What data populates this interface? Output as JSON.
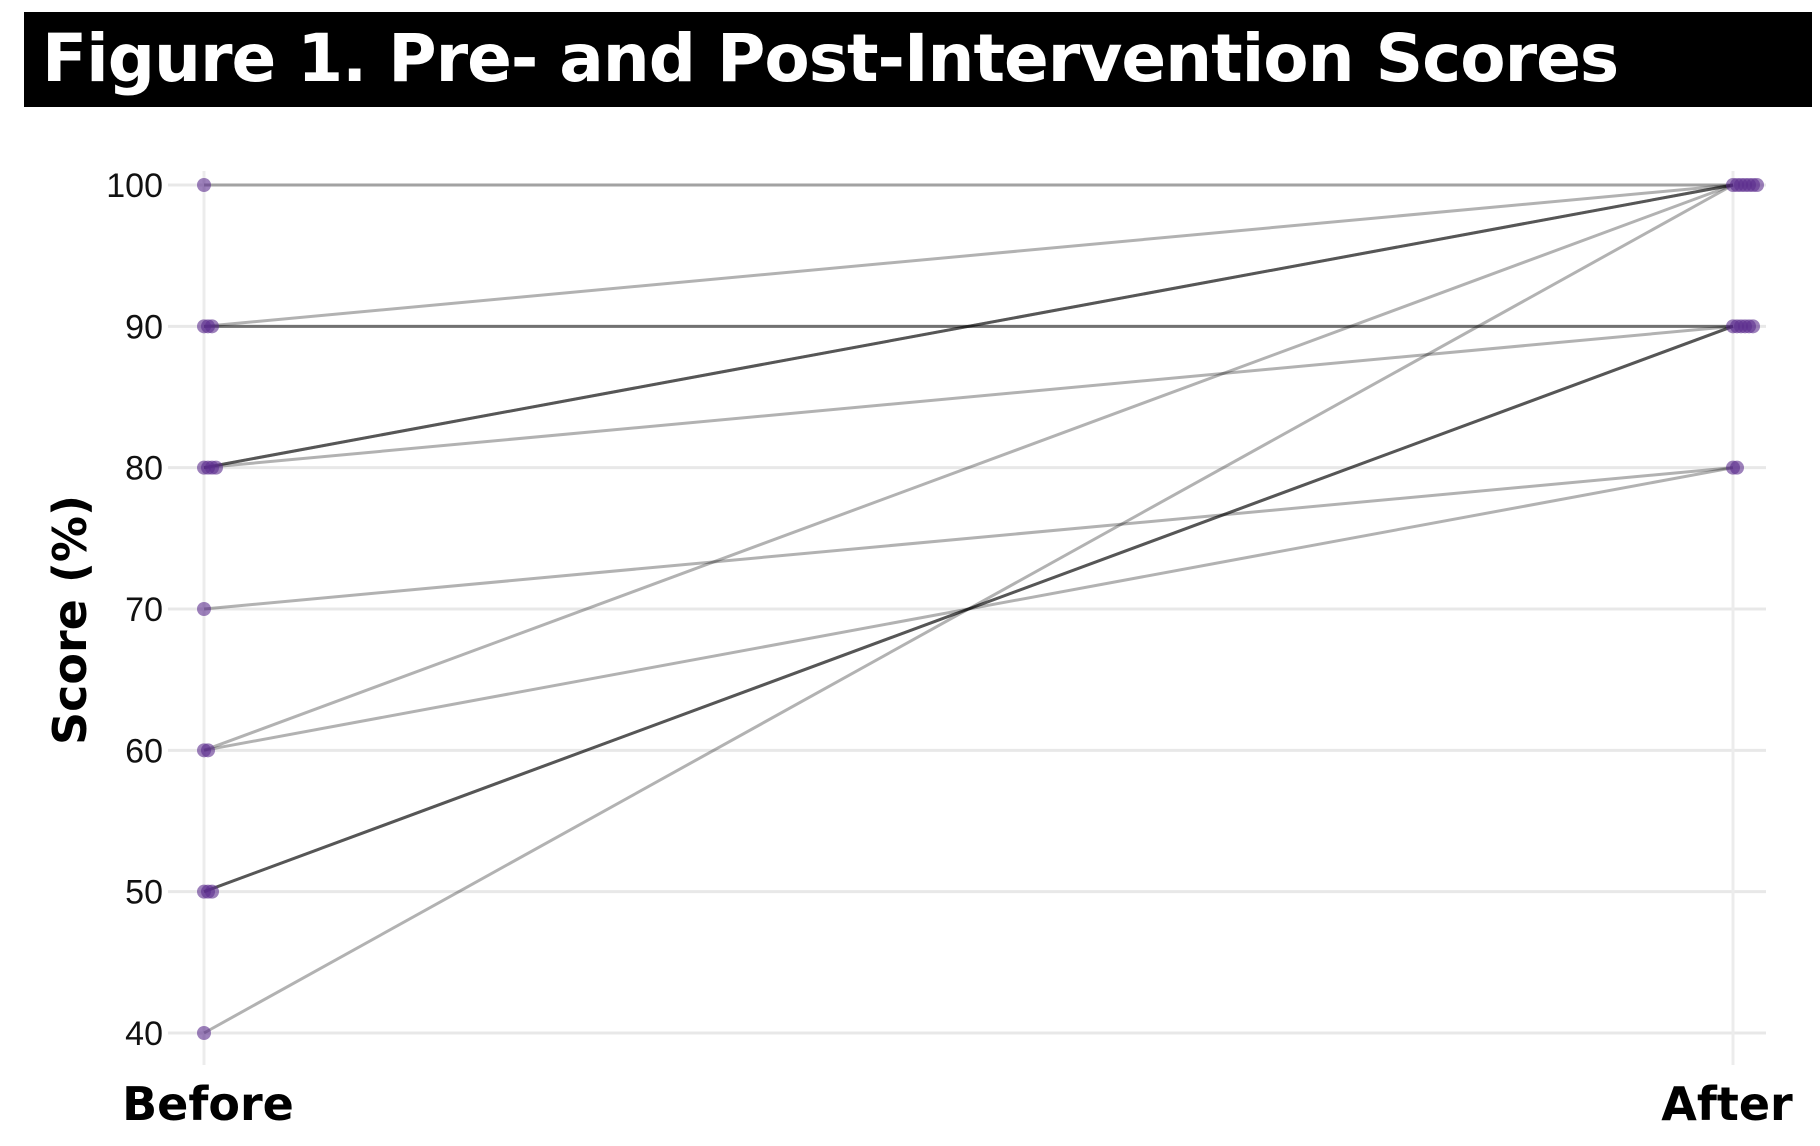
{
  "title": "Figure 1. Pre- and Post-Intervention Scores",
  "chart_data": {
    "type": "line",
    "subtype": "slopegraph",
    "categories": [
      "Before",
      "After"
    ],
    "ylabel": "Score (%)",
    "xlabel": "",
    "ylim": [
      40,
      100
    ],
    "yticks": [
      40,
      50,
      60,
      70,
      80,
      90,
      100
    ],
    "grid": "horizontal",
    "point_color": "#5b2d8e",
    "line_color": "#000000",
    "pairs": [
      {
        "before": 100,
        "after": 100
      },
      {
        "before": 90,
        "after": 100
      },
      {
        "before": 90,
        "after": 90
      },
      {
        "before": 90,
        "after": 90
      },
      {
        "before": 80,
        "after": 100
      },
      {
        "before": 80,
        "after": 100
      },
      {
        "before": 80,
        "after": 100
      },
      {
        "before": 80,
        "after": 90
      },
      {
        "before": 70,
        "after": 80
      },
      {
        "before": 60,
        "after": 100
      },
      {
        "before": 60,
        "after": 80
      },
      {
        "before": 50,
        "after": 90
      },
      {
        "before": 50,
        "after": 90
      },
      {
        "before": 50,
        "after": 90
      },
      {
        "before": 40,
        "after": 100
      }
    ]
  }
}
